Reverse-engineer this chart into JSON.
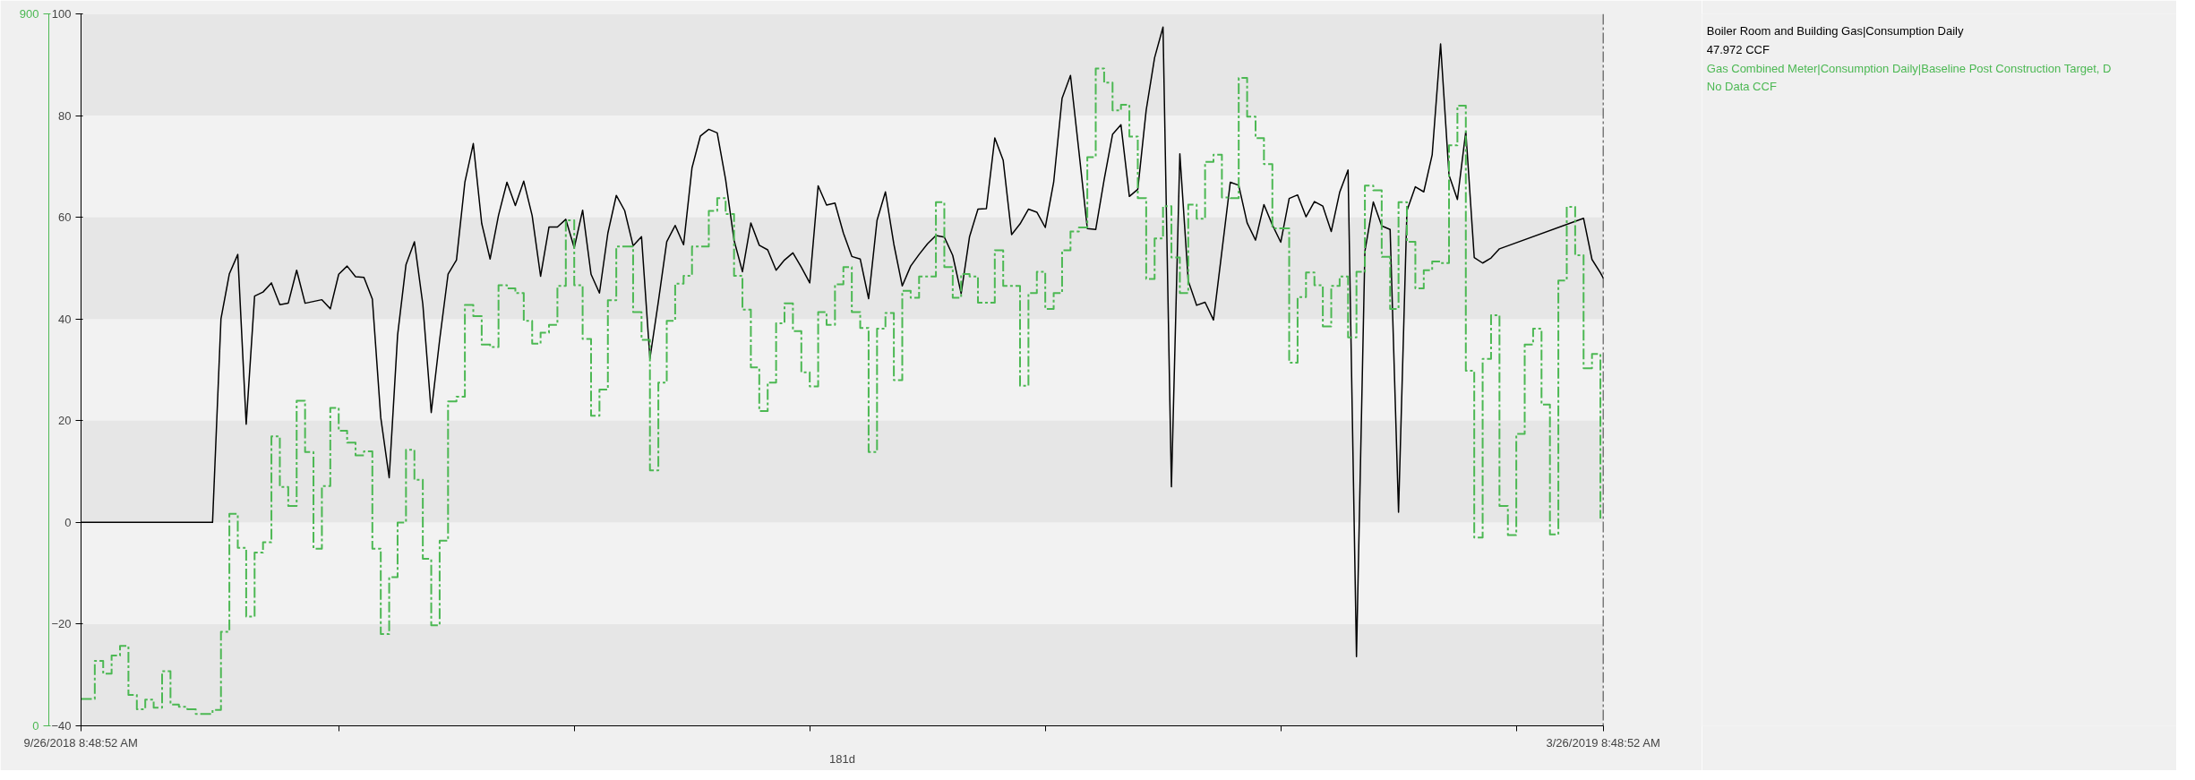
{
  "chart_data": {
    "type": "line",
    "xlabel": "181d",
    "annotations": [
      "47.972 CCF",
      "No Data CCF"
    ],
    "xlim": [
      "2018-09-26T08:48",
      "2019-03-26T08:48"
    ],
    "xticks": [
      {
        "value": "2018-09-26T08:48",
        "label": "9/26/2018 8:48:52 AM"
      },
      {
        "value": "2018-10-27",
        "label": null
      },
      {
        "value": "2018-11-24",
        "label": null
      },
      {
        "value": "2018-12-22",
        "label": null
      },
      {
        "value": "2019-01-19",
        "label": null
      },
      {
        "value": "2019-02-16",
        "label": null
      },
      {
        "value": "2019-03-16",
        "label": null
      },
      {
        "value": "2019-03-26T08:48",
        "label": "3/26/2019 8:48:52 AM"
      }
    ],
    "ylim": [
      -40,
      100
    ],
    "yticks": [
      -40,
      -20,
      0,
      20,
      40,
      60,
      80,
      100
    ],
    "y2lim": [
      0,
      900
    ],
    "y2ticks": [
      0,
      900
    ],
    "bands": [
      {
        "axis": "y",
        "from": 80,
        "to": 100,
        "label": null,
        "color": "#e6e6e6"
      },
      {
        "axis": "y",
        "from": 40,
        "to": 60,
        "label": null,
        "color": "#e6e6e6"
      },
      {
        "axis": "y",
        "from": 0,
        "to": 20,
        "label": null,
        "color": "#e6e6e6"
      },
      {
        "axis": "y",
        "from": -40,
        "to": -20,
        "label": null,
        "color": "#e6e6e6"
      }
    ],
    "ref_lines": [
      {
        "axis": "x",
        "value": "2019-03-26T08:48",
        "label": null,
        "color": "#000000",
        "line_style": "dashed"
      }
    ],
    "series": [
      {
        "name": "Boiler Room and Building Gas|Consumption Daily",
        "color": "#000000",
        "line_style": "solid",
        "x": [
          "2018-09-26T08:48",
          "2018-10-12",
          "2018-10-13",
          "2018-10-14",
          "2018-10-15",
          "2018-10-16",
          "2018-10-17",
          "2018-10-18",
          "2018-10-19",
          "2018-10-20",
          "2018-10-21",
          "2018-10-22",
          "2018-10-23",
          "2018-10-25",
          "2018-10-26",
          "2018-10-27",
          "2018-10-28",
          "2018-10-29",
          "2018-10-30",
          "2018-10-31",
          "2018-11-01",
          "2018-11-02",
          "2018-11-03",
          "2018-11-04",
          "2018-11-05",
          "2018-11-06",
          "2018-11-07",
          "2018-11-08",
          "2018-11-09",
          "2018-11-10",
          "2018-11-11",
          "2018-11-12",
          "2018-11-13",
          "2018-11-14",
          "2018-11-15",
          "2018-11-16",
          "2018-11-17",
          "2018-11-18",
          "2018-11-19",
          "2018-11-20",
          "2018-11-21",
          "2018-11-22",
          "2018-11-23",
          "2018-11-24",
          "2018-11-25",
          "2018-11-26",
          "2018-11-27",
          "2018-11-28",
          "2018-11-29",
          "2018-11-30",
          "2018-12-01",
          "2018-12-02",
          "2018-12-03",
          "2018-12-04",
          "2018-12-05",
          "2018-12-06",
          "2018-12-07",
          "2018-12-08",
          "2018-12-09",
          "2018-12-10",
          "2018-12-11",
          "2018-12-12",
          "2018-12-13",
          "2018-12-14",
          "2018-12-15",
          "2018-12-16",
          "2018-12-17",
          "2018-12-18",
          "2018-12-19",
          "2018-12-20",
          "2018-12-21",
          "2018-12-22",
          "2018-12-23",
          "2018-12-24",
          "2018-12-25",
          "2018-12-26",
          "2018-12-27",
          "2018-12-28",
          "2018-12-29",
          "2018-12-30",
          "2018-12-31",
          "2019-01-01",
          "2019-01-02",
          "2019-01-03",
          "2019-01-04",
          "2019-01-05",
          "2019-01-06",
          "2019-01-07",
          "2019-01-08",
          "2019-01-09",
          "2019-01-10",
          "2019-01-11",
          "2019-01-12",
          "2019-01-13",
          "2019-01-14",
          "2019-01-15",
          "2019-01-16",
          "2019-01-17",
          "2019-01-18",
          "2019-01-19",
          "2019-01-20",
          "2019-01-21",
          "2019-01-22",
          "2019-01-23",
          "2019-01-24",
          "2019-01-25",
          "2019-01-26",
          "2019-01-27",
          "2019-01-28",
          "2019-01-29",
          "2019-01-30",
          "2019-01-31",
          "2019-02-01",
          "2019-02-02",
          "2019-02-03",
          "2019-02-04",
          "2019-02-05",
          "2019-02-06",
          "2019-02-07",
          "2019-02-08",
          "2019-02-09",
          "2019-02-10",
          "2019-02-11",
          "2019-02-12",
          "2019-02-13",
          "2019-02-14",
          "2019-02-15",
          "2019-02-16",
          "2019-02-17",
          "2019-02-18",
          "2019-02-19",
          "2019-02-20",
          "2019-02-21",
          "2019-02-22",
          "2019-02-23",
          "2019-02-24",
          "2019-02-25",
          "2019-02-26",
          "2019-02-27",
          "2019-02-28",
          "2019-03-01",
          "2019-03-02",
          "2019-03-03",
          "2019-03-04",
          "2019-03-05",
          "2019-03-06",
          "2019-03-07",
          "2019-03-08",
          "2019-03-09",
          "2019-03-10",
          "2019-03-11",
          "2019-03-12",
          "2019-03-13",
          "2019-03-14",
          "2019-03-24",
          "2019-03-25",
          "2019-03-26",
          "2019-03-26T08:48"
        ],
        "values": [
          0,
          0,
          40.0,
          48.9,
          52.7,
          19.3,
          44.5,
          45.3,
          47.1,
          42.8,
          43.1,
          49.6,
          43.1,
          43.8,
          42.0,
          48.8,
          50.4,
          48.3,
          48.2,
          43.9,
          20.6,
          8.8,
          36.8,
          50.7,
          55.2,
          42.9,
          21.6,
          35.9,
          48.8,
          51.6,
          66.9,
          74.5,
          58.8,
          51.8,
          60.4,
          66.9,
          62.3,
          67.1,
          60.3,
          48.4,
          58.1,
          58.1,
          59.6,
          54.0,
          61.4,
          48.8,
          45.1,
          56.9,
          64.3,
          61.3,
          54.4,
          56.2,
          32.2,
          43.4,
          55.2,
          58.4,
          54.6,
          69.7,
          76.0,
          77.3,
          76.6,
          67.4,
          55.5,
          49.3,
          58.9,
          54.5,
          53.6,
          49.6,
          51.6,
          53.0,
          50.2,
          47.1,
          66.2,
          62.4,
          62.8,
          56.9,
          52.3,
          51.8,
          44.0,
          59.4,
          65.0,
          54.7,
          46.5,
          50.4,
          52.7,
          54.8,
          56.4,
          56.1,
          52.5,
          45.0,
          56.2,
          61.6,
          61.7,
          75.6,
          71.2,
          56.6,
          58.7,
          61.6,
          61.0,
          58.0,
          66.9,
          83.4,
          87.9,
          73.0,
          57.8,
          57.6,
          67.4,
          76.3,
          78.2,
          64.1,
          65.5,
          81.1,
          91.4,
          97.4,
          7.0,
          72.5,
          47.5,
          42.7,
          43.3,
          39.8,
          53.3,
          66.9,
          66.3,
          58.9,
          55.5,
          62.5,
          58.5,
          55.1,
          63.7,
          64.4,
          60.1,
          63.1,
          62.2,
          57.2,
          64.9,
          69.3,
          -26.4,
          53.3,
          63.0,
          58.3,
          57.6,
          2.0,
          61.3,
          66.0,
          65.0,
          72.3,
          94.1,
          68.3,
          63.5,
          76.9,
          52.1,
          51.0,
          52.0,
          53.8,
          59.8,
          51.7,
          49.1,
          48.0
        ]
      },
      {
        "name": "Gas Combined Meter|Consumption Daily|Baseline Post Construction Target, D",
        "color": "#4cb853",
        "type": "step",
        "axis": "y2",
        "line_style": "dashed",
        "x": [
          "2018-09-26T08:48",
          "2018-09-28",
          "2018-09-29",
          "2018-09-30",
          "2018-10-01",
          "2018-10-02",
          "2018-10-03",
          "2018-10-04",
          "2018-10-05",
          "2018-10-06",
          "2018-10-07",
          "2018-10-08",
          "2018-10-09",
          "2018-10-10",
          "2018-10-12",
          "2018-10-13",
          "2018-10-14",
          "2018-10-15",
          "2018-10-16",
          "2018-10-17",
          "2018-10-18",
          "2018-10-19",
          "2018-10-20",
          "2018-10-21",
          "2018-10-22",
          "2018-10-23",
          "2018-10-24",
          "2018-10-25",
          "2018-10-26",
          "2018-10-27",
          "2018-10-28",
          "2018-10-29",
          "2018-10-30",
          "2018-10-31",
          "2018-11-01",
          "2018-11-02",
          "2018-11-03",
          "2018-11-04",
          "2018-11-05",
          "2018-11-06",
          "2018-11-07",
          "2018-11-08",
          "2018-11-09",
          "2018-11-10",
          "2018-11-11",
          "2018-11-12",
          "2018-11-13",
          "2018-11-14",
          "2018-11-15",
          "2018-11-16",
          "2018-11-17",
          "2018-11-18",
          "2018-11-19",
          "2018-11-20",
          "2018-11-21",
          "2018-11-22",
          "2018-11-23",
          "2018-11-24",
          "2018-11-25",
          "2018-11-26",
          "2018-11-27",
          "2018-11-28",
          "2018-11-29",
          "2018-12-01",
          "2018-12-02",
          "2018-12-03",
          "2018-12-04",
          "2018-12-05",
          "2018-12-06",
          "2018-12-07",
          "2018-12-08",
          "2018-12-10",
          "2018-12-11",
          "2018-12-12",
          "2018-12-13",
          "2018-12-14",
          "2018-12-15",
          "2018-12-16",
          "2018-12-17",
          "2018-12-18",
          "2018-12-19",
          "2018-12-20",
          "2018-12-21",
          "2018-12-22",
          "2018-12-23",
          "2018-12-24",
          "2018-12-25",
          "2018-12-26",
          "2018-12-27",
          "2018-12-28",
          "2018-12-29",
          "2018-12-30",
          "2018-12-31",
          "2019-01-01",
          "2019-01-02",
          "2019-01-03",
          "2019-01-04",
          "2019-01-06",
          "2019-01-07",
          "2019-01-08",
          "2019-01-09",
          "2019-01-10",
          "2019-01-11",
          "2019-01-13",
          "2019-01-14",
          "2019-01-16",
          "2019-01-17",
          "2019-01-18",
          "2019-01-19",
          "2019-01-20",
          "2019-01-21",
          "2019-01-22",
          "2019-01-23",
          "2019-01-24",
          "2019-01-25",
          "2019-01-26",
          "2019-01-27",
          "2019-01-28",
          "2019-01-29",
          "2019-01-30",
          "2019-01-31",
          "2019-02-01",
          "2019-02-02",
          "2019-02-03",
          "2019-02-04",
          "2019-02-05",
          "2019-02-06",
          "2019-02-07",
          "2019-02-08",
          "2019-02-09",
          "2019-02-10",
          "2019-02-11",
          "2019-02-12",
          "2019-02-13",
          "2019-02-14",
          "2019-02-15",
          "2019-02-17",
          "2019-02-18",
          "2019-02-19",
          "2019-02-20",
          "2019-02-21",
          "2019-02-22",
          "2019-02-23",
          "2019-02-24",
          "2019-02-25",
          "2019-02-26",
          "2019-02-27",
          "2019-02-28",
          "2019-03-01",
          "2019-03-02",
          "2019-03-03",
          "2019-03-04",
          "2019-03-05",
          "2019-03-06",
          "2019-03-07",
          "2019-03-08",
          "2019-03-09",
          "2019-03-10",
          "2019-03-11",
          "2019-03-12",
          "2019-03-13",
          "2019-03-14",
          "2019-03-15",
          "2019-03-16",
          "2019-03-17",
          "2019-03-18",
          "2019-03-19",
          "2019-03-20",
          "2019-03-21",
          "2019-03-22",
          "2019-03-23",
          "2019-03-24",
          "2019-03-25",
          "2019-03-26"
        ],
        "values": [
          34,
          82,
          66,
          89,
          101,
          39,
          21,
          33,
          23,
          69,
          27,
          24,
          21,
          15,
          20,
          119,
          268,
          225,
          138,
          219,
          232,
          366,
          302,
          278,
          411,
          346,
          224,
          303,
          402,
          373,
          358,
          342,
          347,
          224,
          116,
          188,
          257,
          349,
          311,
          211,
          127,
          234,
          410,
          416,
          532,
          518,
          482,
          479,
          557,
          553,
          547,
          512,
          483,
          497,
          507,
          556,
          639,
          557,
          489,
          392,
          425,
          538,
          606,
          523,
          488,
          323,
          434,
          512,
          559,
          569,
          606,
          651,
          667,
          647,
          569,
          526,
          453,
          398,
          434,
          509,
          534,
          499,
          447,
          429,
          523,
          507,
          558,
          580,
          523,
          503,
          346,
          502,
          522,
          437,
          550,
          541,
          568,
          662,
          580,
          541,
          571,
          568,
          535,
          601,
          556,
          430,
          547,
          574,
          527,
          547,
          601,
          625,
          630,
          719,
          831,
          813,
          778,
          785,
          745,
          667,
          565,
          616,
          657,
          592,
          547,
          659,
          641,
          713,
          722,
          668,
          667,
          819,
          770,
          743,
          710,
          629,
          459,
          542,
          573,
          557,
          505,
          556,
          568,
          491,
          574,
          683,
          677,
          593,
          527,
          662,
          612,
          553,
          576,
          587,
          585,
          734,
          784,
          449,
          238,
          464,
          519,
          278,
          241,
          369,
          482,
          502,
          406,
          242,
          563,
          656,
          595,
          452,
          470,
          262
        ]
      }
    ]
  }
}
